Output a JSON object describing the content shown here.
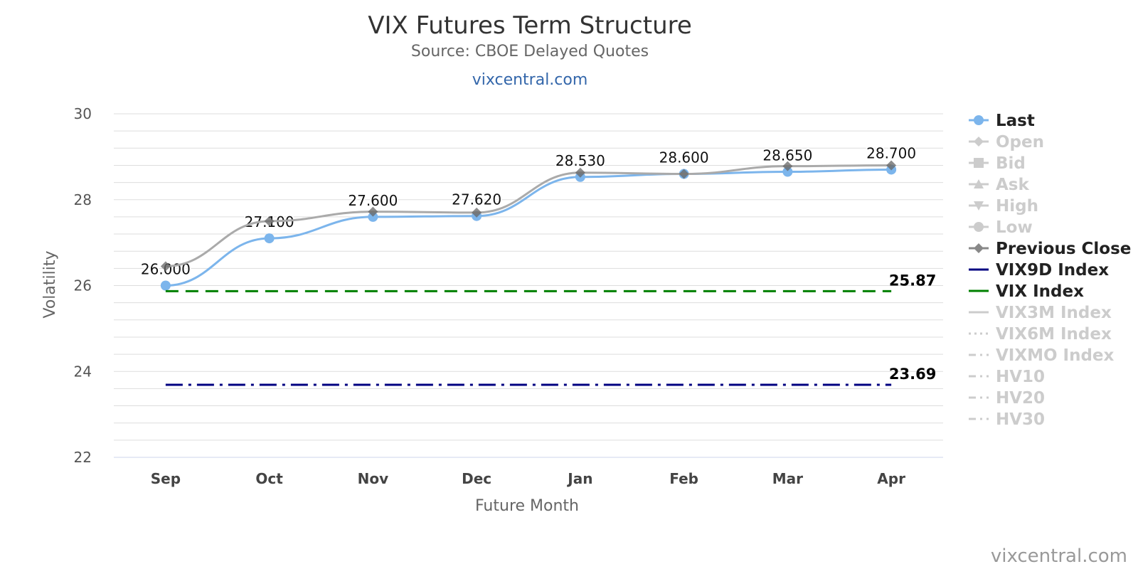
{
  "title": "VIX Futures Term Structure",
  "subtitle": "Source: CBOE Delayed Quotes",
  "link_text": "vixcentral.com",
  "credit": "vixcentral.com",
  "chart_data": {
    "type": "line",
    "title": "VIX Futures Term Structure",
    "xlabel": "Future Month",
    "ylabel": "Volatility",
    "categories": [
      "Sep",
      "Oct",
      "Nov",
      "Dec",
      "Jan",
      "Feb",
      "Mar",
      "Apr"
    ],
    "ylim": [
      22,
      30
    ],
    "yticks": [
      22,
      24,
      26,
      28,
      30
    ],
    "minor_step": 0.4,
    "grid": true,
    "legend_position": "right",
    "series": [
      {
        "name": "Last",
        "color": "#7cb5ec",
        "values": [
          26.0,
          27.1,
          27.6,
          27.62,
          28.53,
          28.6,
          28.65,
          28.7
        ],
        "data_labels": [
          "26.000",
          "27.100",
          "27.600",
          "27.620",
          "28.530",
          "28.600",
          "28.650",
          "28.700"
        ]
      },
      {
        "name": "Previous Close",
        "color": "#aaaaaa",
        "values": [
          26.45,
          27.5,
          27.72,
          27.7,
          28.63,
          28.6,
          28.78,
          28.8
        ]
      },
      {
        "name": "VIX9D Index",
        "color": "#000080",
        "dash": "dash-dot",
        "value": 23.69,
        "label": "23.69"
      },
      {
        "name": "VIX Index",
        "color": "#008000",
        "dash": "dash",
        "value": 25.87,
        "label": "25.87"
      }
    ],
    "legend": [
      {
        "name": "Last",
        "symbol": "circle",
        "line": "solid",
        "active": true,
        "color": "#7cb5ec"
      },
      {
        "name": "Open",
        "symbol": "diamond",
        "line": "solid",
        "active": false,
        "color": "#cccccc"
      },
      {
        "name": "Bid",
        "symbol": "square",
        "line": "solid",
        "active": false,
        "color": "#cccccc"
      },
      {
        "name": "Ask",
        "symbol": "triangle",
        "line": "solid",
        "active": false,
        "color": "#cccccc"
      },
      {
        "name": "High",
        "symbol": "triangle-down",
        "line": "solid",
        "active": false,
        "color": "#cccccc"
      },
      {
        "name": "Low",
        "symbol": "circle",
        "line": "solid",
        "active": false,
        "color": "#cccccc"
      },
      {
        "name": "Previous Close",
        "symbol": "diamond",
        "line": "solid",
        "active": true,
        "color": "#888888"
      },
      {
        "name": "VIX9D Index",
        "symbol": "none",
        "line": "solid",
        "active": true,
        "color": "#000080"
      },
      {
        "name": "VIX Index",
        "symbol": "none",
        "line": "solid",
        "active": true,
        "color": "#008000"
      },
      {
        "name": "VIX3M Index",
        "symbol": "none",
        "line": "solid",
        "active": false,
        "color": "#cccccc"
      },
      {
        "name": "VIX6M Index",
        "symbol": "none",
        "line": "dotted",
        "active": false,
        "color": "#cccccc"
      },
      {
        "name": "VIXMO Index",
        "symbol": "none",
        "line": "dash-dot",
        "active": false,
        "color": "#cccccc"
      },
      {
        "name": "HV10",
        "symbol": "none",
        "line": "dash-dot",
        "active": false,
        "color": "#cccccc"
      },
      {
        "name": "HV20",
        "symbol": "none",
        "line": "dash-dot",
        "active": false,
        "color": "#cccccc"
      },
      {
        "name": "HV30",
        "symbol": "none",
        "line": "dash-dot",
        "active": false,
        "color": "#cccccc"
      }
    ]
  }
}
